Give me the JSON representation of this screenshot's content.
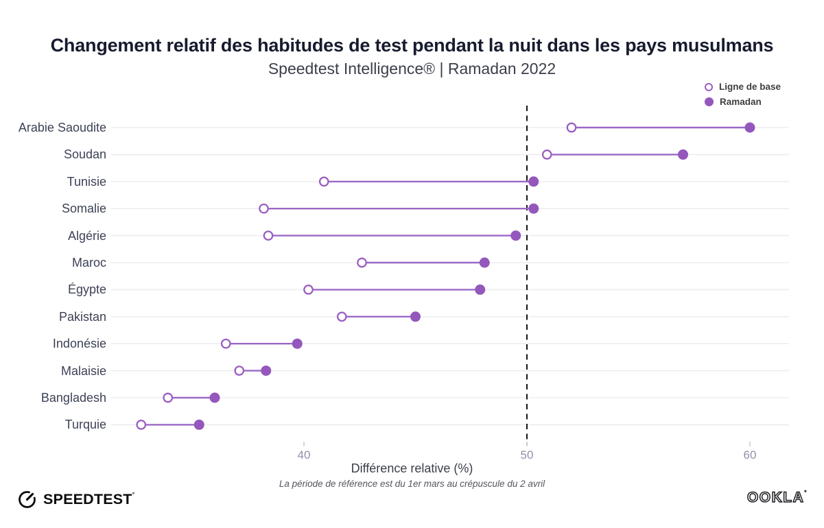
{
  "header": {
    "title": "Changement relatif des habitudes de test pendant la nuit dans les pays musulmans",
    "subtitle": "Speedtest Intelligence® | Ramadan 2022"
  },
  "legend": {
    "baseline_label": "Ligne de base",
    "ramadan_label": "Ramadan"
  },
  "chart_data": {
    "type": "dumbbell",
    "title": "Changement relatif des habitudes de test pendant la nuit dans les pays musulmans",
    "subtitle": "Speedtest Intelligence® | Ramadan 2022",
    "xlabel": "Différence relative (%)",
    "caption": "La période de référence est du 1er mars au crépuscule du 2 avril",
    "categories": [
      "Arabie Saoudite",
      "Soudan",
      "Tunisie",
      "Somalie",
      "Algérie",
      "Maroc",
      "Égypte",
      "Pakistan",
      "Indonésie",
      "Malaisie",
      "Bangladesh",
      "Turquie"
    ],
    "series": [
      {
        "name": "Ligne de base",
        "style": "open",
        "values": [
          52.0,
          50.9,
          40.9,
          38.2,
          38.4,
          42.6,
          40.2,
          41.7,
          36.5,
          37.1,
          33.9,
          32.7
        ]
      },
      {
        "name": "Ramadan",
        "style": "filled",
        "values": [
          60.0,
          57.0,
          50.3,
          50.3,
          49.5,
          48.1,
          47.9,
          45.0,
          39.7,
          38.3,
          36.0,
          35.3
        ]
      }
    ],
    "x_ticks": [
      40,
      50,
      60
    ],
    "x_range": [
      31.4,
      61.8
    ],
    "reference_line_x": 50,
    "grid": "horizontal-only",
    "legend_position": "top-right",
    "colors": {
      "purple_fill": "#9457bb",
      "purple_line": "#9a68c6",
      "open_stroke": "#9b5fc0",
      "grid_line": "#ededf1",
      "reference_line": "#141414",
      "tick_mark": "#c9c9d3",
      "tick_label": "#8f91a8"
    }
  },
  "footer": {
    "speedtest_label": "SPEEDTEST",
    "speedtest_tm": "°",
    "ookla_label": "OOKLA",
    "ookla_tm": "°"
  }
}
